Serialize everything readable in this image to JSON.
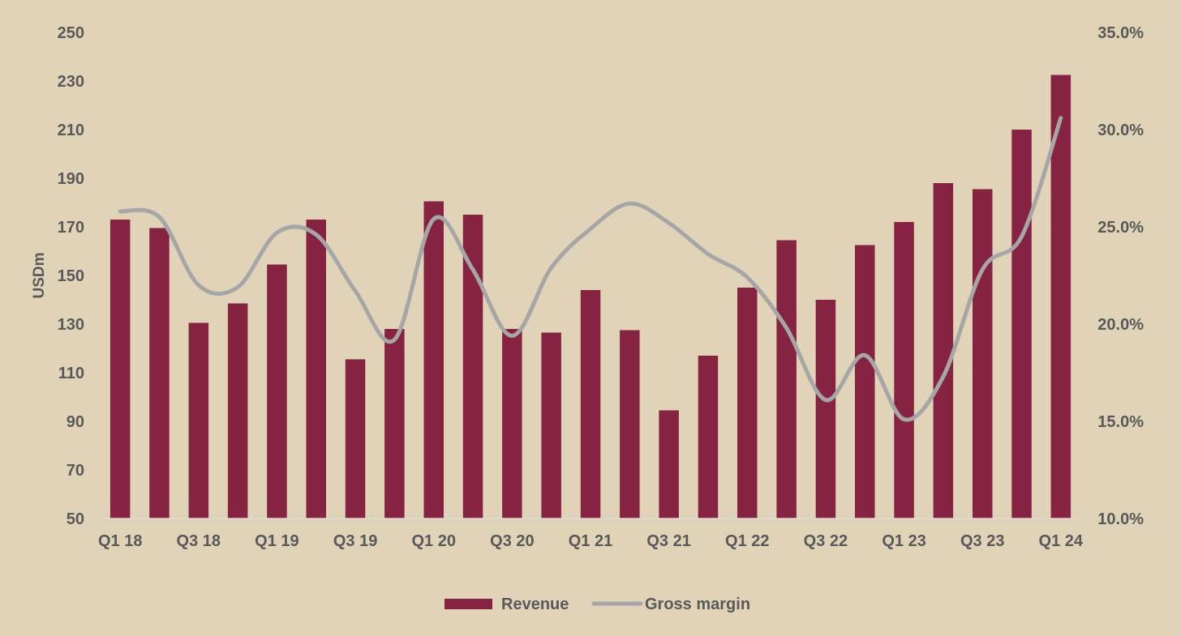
{
  "chart_data": {
    "type": "bar",
    "categories": [
      "Q1 18",
      "Q2 18",
      "Q3 18",
      "Q4 18",
      "Q1 19",
      "Q2 19",
      "Q3 19",
      "Q4 19",
      "Q1 20",
      "Q2 20",
      "Q3 20",
      "Q4 20",
      "Q1 21",
      "Q2 21",
      "Q3 21",
      "Q4 21",
      "Q1 22",
      "Q2 22",
      "Q3 22",
      "Q4 22",
      "Q1 23",
      "Q2 23",
      "Q3 23",
      "Q4 23",
      "Q1 24"
    ],
    "x_tick_labels": [
      "Q1 18",
      "Q3 18",
      "Q1 19",
      "Q3 19",
      "Q1 20",
      "Q3 20",
      "Q1 21",
      "Q3 21",
      "Q1 22",
      "Q3 22",
      "Q1 23",
      "Q3 23",
      "Q1 24"
    ],
    "series": [
      {
        "name": "Revenue",
        "type": "bar",
        "axis": "left",
        "color": "#862342",
        "values": [
          173,
          169.5,
          130.5,
          138.5,
          154.5,
          173,
          115.5,
          128,
          180.5,
          175,
          128,
          126.5,
          144,
          127.5,
          94.5,
          117,
          145,
          164.5,
          140,
          162.5,
          172,
          188,
          185.5,
          210,
          232.5
        ]
      },
      {
        "name": "Gross margin",
        "type": "line",
        "axis": "right",
        "color": "#a6a6a6",
        "values": [
          25.8,
          25.5,
          22,
          21.9,
          24.7,
          24.6,
          21.7,
          19.2,
          25.4,
          22.8,
          19.4,
          22.9,
          24.9,
          26.2,
          25.2,
          23.6,
          22.4,
          19.8,
          16.1,
          18.4,
          15.1,
          17.3,
          22.8,
          24.5,
          30.6
        ]
      }
    ],
    "ylabel": "USDm",
    "ylim": [
      50,
      250
    ],
    "y_ticks": [
      "250",
      "230",
      "210",
      "190",
      "170",
      "150",
      "130",
      "110",
      "90",
      "70",
      "50"
    ],
    "y2lim": [
      10,
      35
    ],
    "y2_ticks": [
      "35.0%",
      "30.0%",
      "25.0%",
      "20.0%",
      "15.0%",
      "10.0%"
    ],
    "legend_position": "bottom",
    "grid": false
  },
  "legend": [
    {
      "label": "Revenue"
    },
    {
      "label": "Gross margin"
    }
  ]
}
